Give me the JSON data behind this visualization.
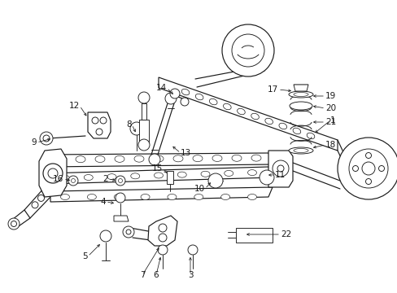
{
  "bg_color": "#ffffff",
  "line_color": "#1a1a1a",
  "fig_width": 4.89,
  "fig_height": 3.6,
  "dpi": 100,
  "font_size": 7.5,
  "lw_main": 1.1,
  "lw_thin": 0.65,
  "lw_med": 0.85
}
